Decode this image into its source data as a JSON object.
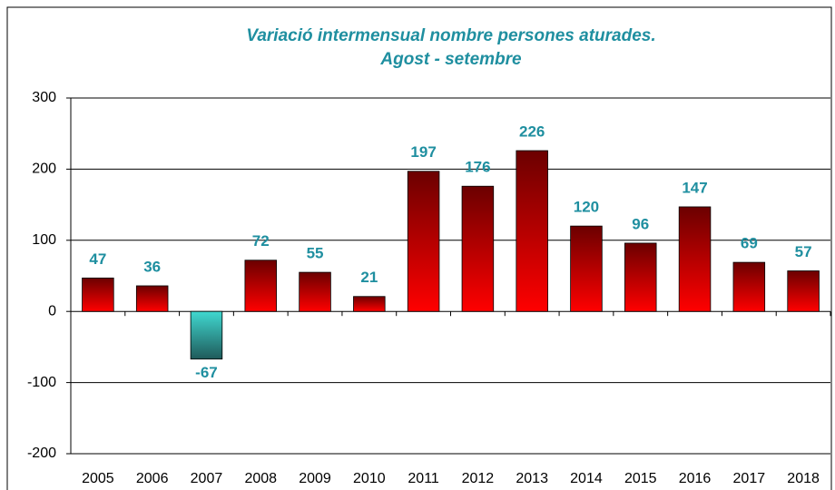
{
  "chart_data": {
    "type": "bar",
    "title": "Variació intermensual nombre persones aturades.",
    "subtitle": "Agost - setembre",
    "categories": [
      "2005",
      "2006",
      "2007",
      "2008",
      "2009",
      "2010",
      "2011",
      "2012",
      "2013",
      "2014",
      "2015",
      "2016",
      "2017",
      "2018"
    ],
    "values": [
      47,
      36,
      -67,
      72,
      55,
      21,
      197,
      176,
      226,
      120,
      96,
      147,
      69,
      57
    ],
    "colors": {
      "positive": [
        "#6b0000",
        "#ff0000"
      ],
      "negative": [
        "#40d8d0",
        "#1f5a5a"
      ],
      "labels": "#1f8fa0"
    },
    "ylim": [
      -200,
      300
    ],
    "yticks": [
      -200,
      -100,
      0,
      100,
      200,
      300
    ],
    "grid": true
  }
}
